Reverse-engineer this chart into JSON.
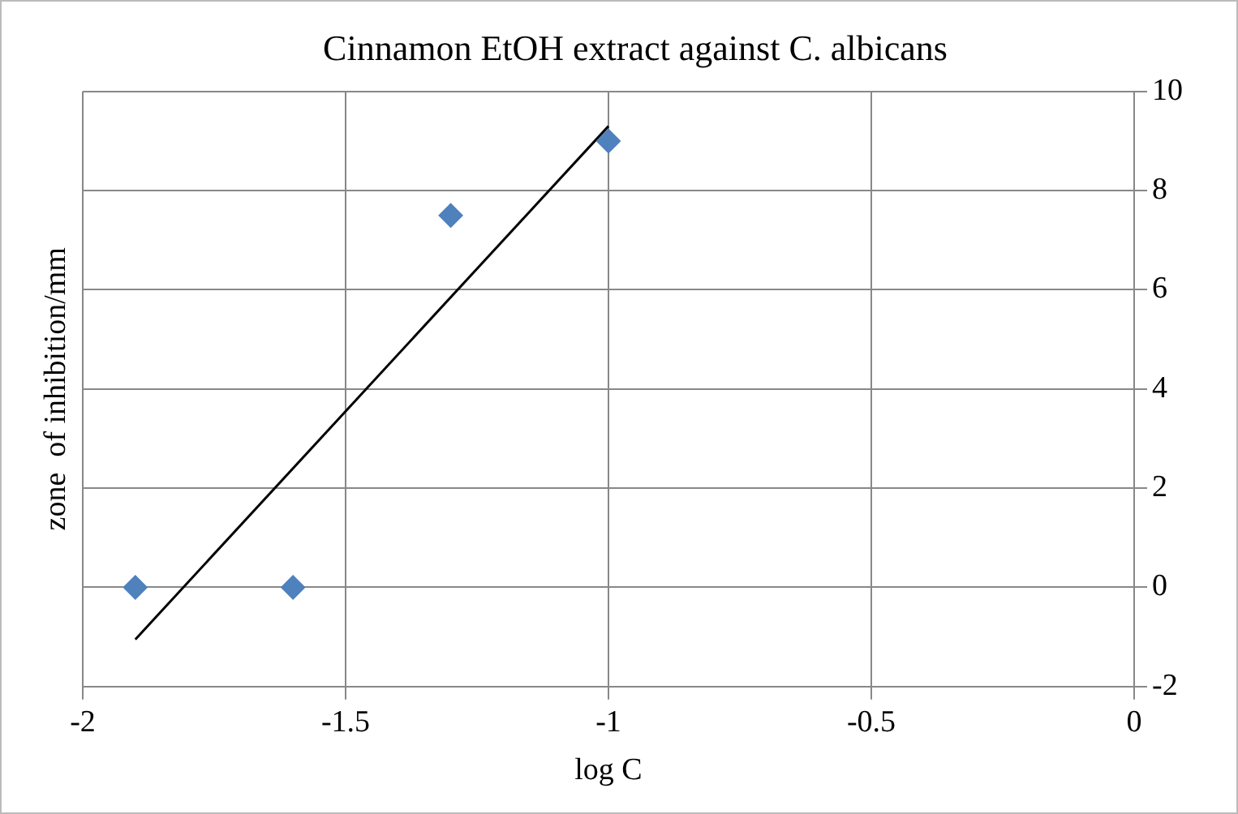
{
  "chart_data": {
    "type": "scatter",
    "title": "Cinnamon EtOH extract against C. albicans",
    "xlabel": "log C",
    "ylabel": "zone  of inhibition/mm",
    "x": [
      -1.9,
      -1.6,
      -1.3,
      -1
    ],
    "series": [
      {
        "color": "#4f81bd",
        "values": [
          0,
          0,
          7.5,
          9
        ]
      },
      {
        "type": "line",
        "color": "#000000",
        "x": [
          -1.9,
          -1
        ],
        "values": [
          -1.05,
          9.3
        ],
        "marker": "none"
      }
    ],
    "xlim": [
      -2,
      0
    ],
    "xticks": [
      -2,
      -1.5,
      -1,
      -0.5,
      0
    ],
    "ylim": [
      -2,
      10
    ],
    "yticks": [
      -2,
      0,
      2,
      4,
      6,
      8,
      10
    ],
    "grid": true,
    "marker": "diamond"
  }
}
